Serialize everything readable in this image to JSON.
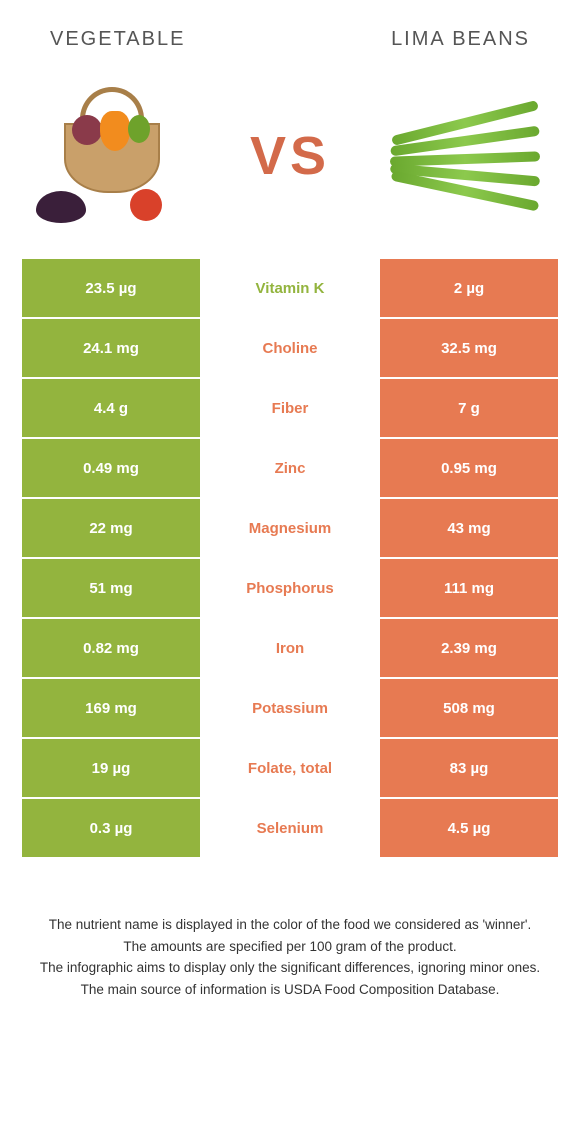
{
  "header": {
    "left": "Vegetable",
    "right": "Lima beans"
  },
  "vs": "VS",
  "colors": {
    "left_bg": "#93b43e",
    "right_bg": "#e77a52",
    "left_text": "#93b43e",
    "right_text": "#e77a52",
    "cell_text": "#ffffff"
  },
  "table": {
    "rows": [
      {
        "nutrient": "Vitamin K",
        "left": "23.5 µg",
        "right": "2 µg",
        "winner": "left"
      },
      {
        "nutrient": "Choline",
        "left": "24.1 mg",
        "right": "32.5 mg",
        "winner": "right"
      },
      {
        "nutrient": "Fiber",
        "left": "4.4 g",
        "right": "7 g",
        "winner": "right"
      },
      {
        "nutrient": "Zinc",
        "left": "0.49 mg",
        "right": "0.95 mg",
        "winner": "right"
      },
      {
        "nutrient": "Magnesium",
        "left": "22 mg",
        "right": "43 mg",
        "winner": "right"
      },
      {
        "nutrient": "Phosphorus",
        "left": "51 mg",
        "right": "111 mg",
        "winner": "right"
      },
      {
        "nutrient": "Iron",
        "left": "0.82 mg",
        "right": "2.39 mg",
        "winner": "right"
      },
      {
        "nutrient": "Potassium",
        "left": "169 mg",
        "right": "508 mg",
        "winner": "right"
      },
      {
        "nutrient": "Folate, total",
        "left": "19 µg",
        "right": "83 µg",
        "winner": "right"
      },
      {
        "nutrient": "Selenium",
        "left": "0.3 µg",
        "right": "4.5 µg",
        "winner": "right"
      }
    ]
  },
  "footnotes": [
    "The nutrient name is displayed in the color of the food we considered as 'winner'.",
    "The amounts are specified per 100 gram of the product.",
    "The infographic aims to display only the significant differences, ignoring minor ones.",
    "The main source of information is USDA Food Composition Database."
  ]
}
